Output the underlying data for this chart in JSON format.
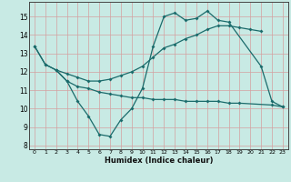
{
  "xlabel": "Humidex (Indice chaleur)",
  "xlim": [
    -0.5,
    23.5
  ],
  "ylim": [
    7.8,
    15.8
  ],
  "yticks": [
    8,
    9,
    10,
    11,
    12,
    13,
    14,
    15
  ],
  "xticks": [
    0,
    1,
    2,
    3,
    4,
    5,
    6,
    7,
    8,
    9,
    10,
    11,
    12,
    13,
    14,
    15,
    16,
    17,
    18,
    19,
    20,
    21,
    22,
    23
  ],
  "bg_color": "#c8eae4",
  "grid_color": "#d4a0a0",
  "line_color": "#1a6b6b",
  "line1_x": [
    0,
    1,
    2,
    3,
    4,
    5,
    6,
    7,
    8,
    9,
    10,
    11,
    12,
    13,
    14,
    15,
    16,
    17,
    18,
    21,
    22,
    23
  ],
  "line1_y": [
    13.4,
    12.4,
    12.1,
    11.5,
    10.4,
    9.6,
    8.6,
    8.5,
    9.4,
    10.0,
    11.1,
    13.4,
    15.0,
    15.2,
    14.8,
    14.9,
    15.3,
    14.8,
    14.7,
    12.3,
    10.4,
    10.1
  ],
  "line2_x": [
    0,
    1,
    2,
    3,
    4,
    5,
    6,
    7,
    8,
    9,
    10,
    11,
    12,
    13,
    14,
    15,
    16,
    17,
    18,
    19,
    22,
    23
  ],
  "line2_y": [
    13.4,
    12.4,
    12.1,
    11.5,
    11.2,
    11.1,
    10.9,
    10.8,
    10.7,
    10.6,
    10.6,
    10.5,
    10.5,
    10.5,
    10.4,
    10.4,
    10.4,
    10.4,
    10.3,
    10.3,
    10.2,
    10.1
  ],
  "line3_x": [
    2,
    3,
    4,
    5,
    6,
    7,
    8,
    9,
    10,
    11,
    12,
    13,
    14,
    15,
    16,
    17,
    18,
    19,
    20,
    21
  ],
  "line3_y": [
    12.1,
    11.9,
    11.7,
    11.5,
    11.5,
    11.6,
    11.8,
    12.0,
    12.3,
    12.8,
    13.3,
    13.5,
    13.8,
    14.0,
    14.3,
    14.5,
    14.5,
    14.4,
    14.3,
    14.2
  ]
}
